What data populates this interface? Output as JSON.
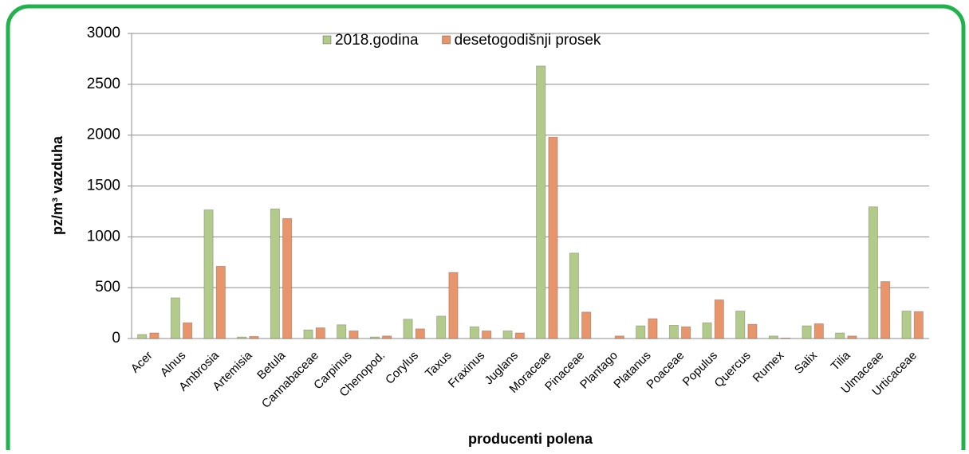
{
  "chart_data": {
    "type": "bar",
    "ylabel": "pz/m³ vazduha",
    "xlabel": "producenti polena",
    "categories": [
      "Acer",
      "Alnus",
      "Ambrosia",
      "Artemisia",
      "Betula",
      "Cannabaceae",
      "Carpinus",
      "Chenopod.",
      "Corylus",
      "Taxus",
      "Fraxinus",
      "Juglans",
      "Moraceae",
      "Pinaceae",
      "Plantago",
      "Platanus",
      "Poaceae",
      "Populus",
      "Quercus",
      "Rumex",
      "Salix",
      "Tilia",
      "Ulmaceae",
      "Urticaceae"
    ],
    "series": [
      {
        "name": "2018.godina",
        "color": "#b3cb8a",
        "values": [
          40,
          400,
          1265,
          15,
          1275,
          85,
          135,
          15,
          190,
          220,
          115,
          75,
          2680,
          840,
          0,
          125,
          130,
          155,
          270,
          25,
          125,
          55,
          1295,
          270
        ]
      },
      {
        "name": "desetogodišnji prosek",
        "color": "#e8956c",
        "values": [
          55,
          155,
          710,
          20,
          1180,
          105,
          75,
          25,
          95,
          650,
          75,
          55,
          1980,
          260,
          25,
          195,
          115,
          380,
          140,
          5,
          145,
          25,
          560,
          265
        ]
      }
    ],
    "ylim": [
      0,
      3000
    ],
    "yticks": [
      0,
      500,
      1000,
      1500,
      2000,
      2500,
      3000
    ],
    "grid": true,
    "legend": "top"
  }
}
